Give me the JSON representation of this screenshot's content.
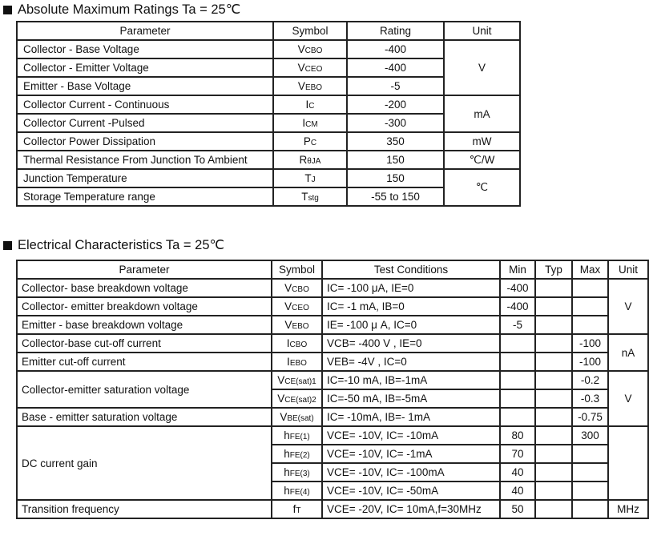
{
  "abs_max": {
    "title": "Absolute Maximum Ratings Ta = 25℃",
    "headers": [
      "Parameter",
      "Symbol",
      "Rating",
      "Unit"
    ],
    "rows": [
      {
        "parameter": "Collector - Base Voltage",
        "symbol": {
          "main": "V",
          "sub": "CBO"
        },
        "rating": "-400",
        "unit": "V",
        "unit_span": 3
      },
      {
        "parameter": "Collector - Emitter Voltage",
        "symbol": {
          "main": "V",
          "sub": "CEO"
        },
        "rating": "-400"
      },
      {
        "parameter": "Emitter - Base Voltage",
        "symbol": {
          "main": "V",
          "sub": "EBO"
        },
        "rating": "-5"
      },
      {
        "parameter": "Collector Current  - Continuous",
        "symbol": {
          "main": "I",
          "sub": "C"
        },
        "rating": "-200",
        "unit": "mA",
        "unit_span": 2
      },
      {
        "parameter": "Collector Current -Pulsed",
        "symbol": {
          "main": "I",
          "sub": "CM"
        },
        "rating": "-300"
      },
      {
        "parameter": "Collector Power Dissipation",
        "symbol": {
          "main": "P",
          "sub": "C"
        },
        "rating": "350",
        "unit": "mW",
        "unit_span": 1
      },
      {
        "parameter": "Thermal Resistance From Junction To Ambient",
        "symbol": {
          "main": "R",
          "sub": "θJA"
        },
        "rating": "150",
        "unit": "℃/W",
        "unit_span": 1
      },
      {
        "parameter": "Junction Temperature",
        "symbol": {
          "main": "T",
          "sub": "J"
        },
        "rating": "150",
        "unit": "℃",
        "unit_span": 2
      },
      {
        "parameter": "Storage Temperature range",
        "symbol": {
          "main": "T",
          "sub": "stg"
        },
        "rating": "-55 to 150"
      }
    ]
  },
  "electrical": {
    "title": "Electrical Characteristics Ta = 25℃",
    "headers": [
      "Parameter",
      "Symbol",
      "Test Conditions",
      "Min",
      "Typ",
      "Max",
      "Unit"
    ],
    "rows": [
      {
        "parameter": "Collector- base breakdown voltage",
        "param_span": 1,
        "symbol": {
          "main": "V",
          "sub": "CBO"
        },
        "conditions": "IC= -100 μA,   IE=0",
        "min": "-400",
        "typ": "",
        "max": "",
        "unit": "V",
        "unit_span": 3
      },
      {
        "parameter": "Collector- emitter breakdown voltage",
        "param_span": 1,
        "symbol": {
          "main": "V",
          "sub": "CEO"
        },
        "conditions": "IC= -1 mA,   IB=0",
        "min": "-400",
        "typ": "",
        "max": ""
      },
      {
        "parameter": "Emitter - base breakdown voltage",
        "param_span": 1,
        "symbol": {
          "main": "V",
          "sub": "EBO"
        },
        "conditions": "IE= -100 μ A,   IC=0",
        "min": "-5",
        "typ": "",
        "max": ""
      },
      {
        "parameter": "Collector-base cut-off current",
        "param_span": 1,
        "symbol": {
          "main": "I",
          "sub": "CBO"
        },
        "conditions": "VCB= -400 V , IE=0",
        "min": "",
        "typ": "",
        "max": "-100",
        "unit": "nA",
        "unit_span": 2
      },
      {
        "parameter": "Emitter cut-off current",
        "param_span": 1,
        "symbol": {
          "main": "I",
          "sub": "EBO"
        },
        "conditions": "VEB= -4V , IC=0",
        "min": "",
        "typ": "",
        "max": "-100"
      },
      {
        "parameter": "Collector-emitter saturation voltage",
        "param_span": 2,
        "symbol": {
          "main": "V",
          "sub": "CE(sat)1"
        },
        "conditions": "IC=-10 mA, IB=-1mA",
        "min": "",
        "typ": "",
        "max": "-0.2",
        "unit": "V",
        "unit_span": 3
      },
      {
        "symbol": {
          "main": "V",
          "sub": "CE(sat)2"
        },
        "conditions": "IC=-50 mA, IB=-5mA",
        "min": "",
        "typ": "",
        "max": "-0.3"
      },
      {
        "parameter": "Base - emitter saturation voltage",
        "param_span": 1,
        "symbol": {
          "main": "V",
          "sub": "BE(sat)"
        },
        "conditions": "IC= -10mA, IB=- 1mA",
        "min": "",
        "typ": "",
        "max": "-0.75"
      },
      {
        "parameter": "DC current gain",
        "param_span": 4,
        "symbol": {
          "main": "h",
          "sub": "FE(1)"
        },
        "conditions": "VCE= -10V, IC= -10mA",
        "min": "80",
        "typ": "",
        "max": "300",
        "unit": "",
        "unit_span": 4
      },
      {
        "symbol": {
          "main": "h",
          "sub": "FE(2)"
        },
        "conditions": "VCE= -10V, IC= -1mA",
        "min": "70",
        "typ": "",
        "max": ""
      },
      {
        "symbol": {
          "main": "h",
          "sub": "FE(3)"
        },
        "conditions": "VCE= -10V, IC= -100mA",
        "min": "40",
        "typ": "",
        "max": ""
      },
      {
        "symbol": {
          "main": "h",
          "sub": "FE(4)"
        },
        "conditions": "VCE= -10V, IC= -50mA",
        "min": "40",
        "typ": "",
        "max": ""
      },
      {
        "parameter": "Transition frequency",
        "param_span": 1,
        "symbol": {
          "main": "f",
          "sub": "T"
        },
        "conditions": "VCE= -20V, IC= 10mA,f=30MHz",
        "min": "50",
        "typ": "",
        "max": "",
        "unit": "MHz",
        "unit_span": 1
      }
    ]
  }
}
